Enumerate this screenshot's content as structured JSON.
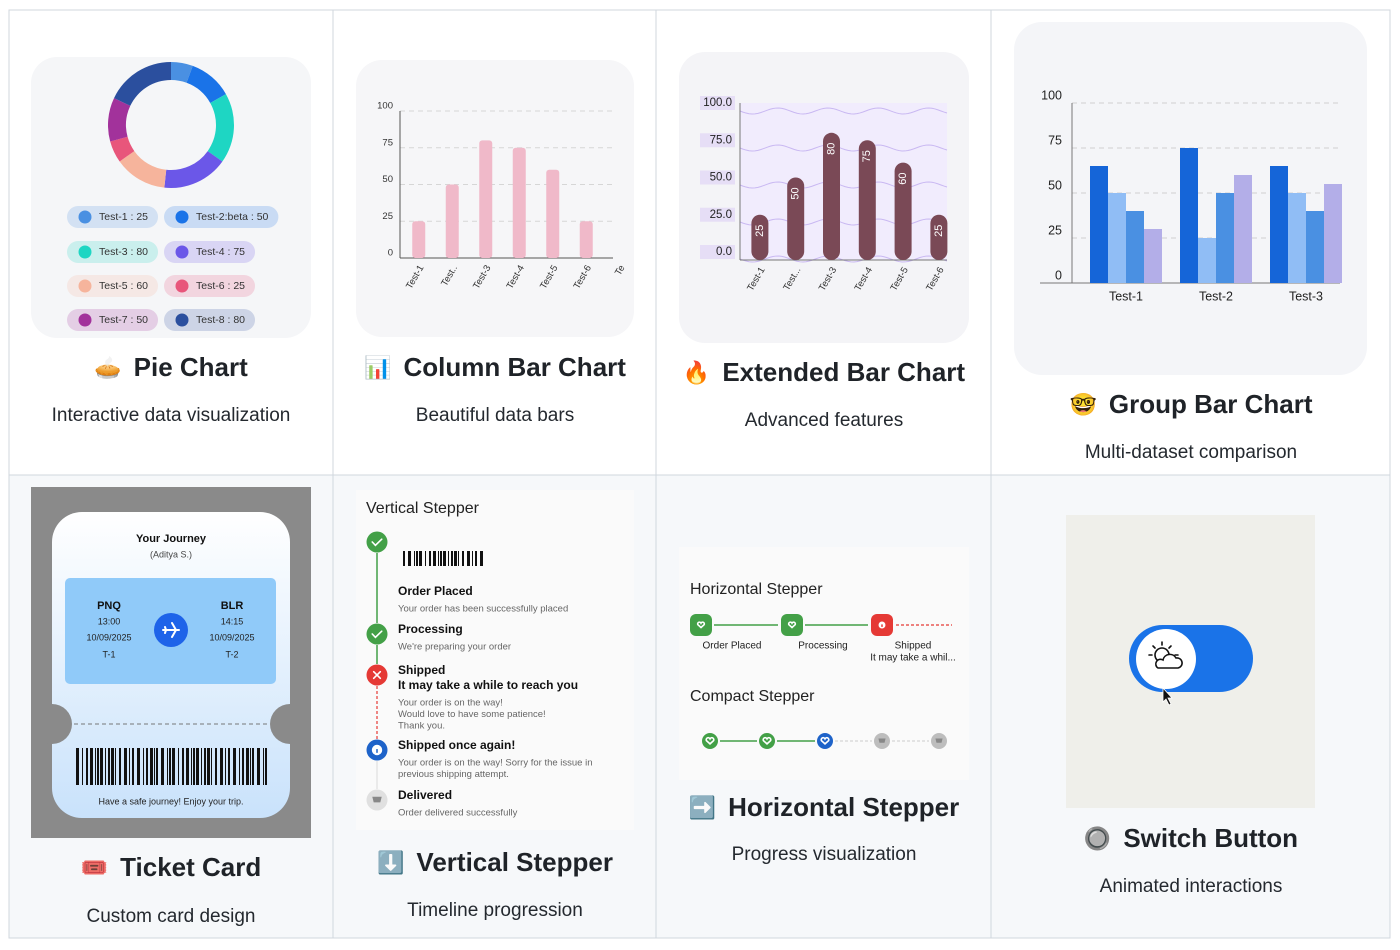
{
  "cards": [
    {
      "emoji": "🥧",
      "title": "Pie Chart",
      "subtitle": "Interactive data visualization",
      "chart": {
        "type": "pie",
        "segments": [
          {
            "label": "Test-1 : 25",
            "value": 25,
            "color": "#4a90e2"
          },
          {
            "label": "Test-2:beta : 50",
            "value": 50,
            "color": "#1a73e8"
          },
          {
            "label": "Test-3 : 80",
            "value": 80,
            "color": "#1ed6c3"
          },
          {
            "label": "Test-4 : 75",
            "value": 75,
            "color": "#6b57e8"
          },
          {
            "label": "Test-5 : 60",
            "value": 60,
            "color": "#f6b49c"
          },
          {
            "label": "Test-6 : 25",
            "value": 25,
            "color": "#e8567b"
          },
          {
            "label": "Test-7 : 50",
            "value": 50,
            "color": "#a2329b"
          },
          {
            "label": "Test-8 : 80",
            "value": 80,
            "color": "#2b4f9e"
          }
        ]
      }
    },
    {
      "emoji": "📊",
      "title": "Column Bar Chart",
      "subtitle": "Beautiful data bars",
      "chart": {
        "type": "bar",
        "categories": [
          "Test-1",
          "Test..",
          "Test-3",
          "Test-4",
          "Test-5",
          "Test-6",
          "Te"
        ],
        "values": [
          25,
          50,
          80,
          75,
          60,
          25,
          null
        ],
        "color": "#f0b9c9",
        "ylim": [
          0,
          100
        ],
        "yticks": [
          0,
          25,
          50,
          75,
          100
        ],
        "grid": true
      }
    },
    {
      "emoji": "🔥",
      "title": "Extended Bar Chart",
      "subtitle": "Advanced features",
      "chart": {
        "type": "extended_bar",
        "categories": [
          "Test-1",
          "Test...",
          "Test-3",
          "Test-4",
          "Test-5",
          "Test-6"
        ],
        "values": [
          25,
          50,
          80,
          75,
          60,
          25
        ],
        "color": "#7a4956",
        "ylim": [
          0,
          100
        ],
        "yticks": [
          {
            "value": 0,
            "label": "0.0"
          },
          {
            "value": 25,
            "label": "25.0"
          },
          {
            "value": 50,
            "label": "50.0"
          },
          {
            "value": 75,
            "label": "75.0"
          },
          {
            "value": 100,
            "label": "100.0"
          }
        ]
      }
    },
    {
      "emoji": "🤓",
      "title": "Group Bar Chart",
      "subtitle": "Multi-dataset comparison",
      "chart": {
        "type": "grouped_bar",
        "categories": [
          "Test-1",
          "Test-2",
          "Test-3"
        ],
        "series": [
          {
            "color": "#1565d8",
            "values": [
              65,
              75,
              65
            ]
          },
          {
            "color": "#90bdf5",
            "values": [
              50,
              25,
              50
            ]
          },
          {
            "color": "#4a90e2",
            "values": [
              40,
              50,
              40
            ]
          },
          {
            "color": "#b3aee8",
            "values": [
              30,
              60,
              55
            ]
          }
        ],
        "ylim": [
          0,
          100
        ],
        "yticks": [
          0,
          25,
          50,
          75,
          100
        ],
        "grid": true
      }
    },
    {
      "emoji": "🎟️",
      "title": "Ticket Card",
      "subtitle": "Custom card design",
      "ticket": {
        "header": "Your Journey",
        "passenger": "(Aditya S.)",
        "from": {
          "code": "PNQ",
          "time": "13:00",
          "date": "10/09/2025",
          "terminal": "T-1"
        },
        "to": {
          "code": "BLR",
          "time": "14:15",
          "date": "10/09/2025",
          "terminal": "T-2"
        },
        "footer": "Have a safe journey! Enjoy your trip."
      }
    },
    {
      "emoji": "⬇️",
      "title": "Vertical Stepper",
      "subtitle": "Timeline progression",
      "stepper": {
        "heading": "Vertical Stepper",
        "steps": [
          {
            "icon": "check",
            "color": "#43a047",
            "title": "Order Placed",
            "lines": [
              "Your order has been successfully placed"
            ]
          },
          {
            "icon": "check",
            "color": "#43a047",
            "title": "Processing",
            "lines": [
              "We're preparing your order"
            ]
          },
          {
            "icon": "cross",
            "color": "#e53935",
            "title": "Shipped",
            "subtitle": "It may take a while to reach you",
            "lines": [
              "Your order is on the way!",
              "Would love to have some patience!",
              "Thank you."
            ]
          },
          {
            "icon": "info",
            "color": "#1e63c9",
            "title": "Shipped once again!",
            "lines": [
              "Your order is on the way! Sorry for the issue in",
              "previous shipping attempt."
            ]
          },
          {
            "icon": "cart",
            "color": "#e0e0e0",
            "title": "Delivered",
            "lines": [
              "Order delivered successfully"
            ]
          }
        ]
      }
    },
    {
      "emoji": "➡️",
      "title": "Horizontal Stepper",
      "subtitle": "Progress visualization",
      "hstepper": {
        "heading": "Horizontal Stepper",
        "steps": [
          {
            "icon": "heart",
            "color": "#43a047",
            "label": "Order Placed"
          },
          {
            "icon": "heart",
            "color": "#43a047",
            "label": "Processing"
          },
          {
            "icon": "info",
            "color": "#e53935",
            "label": "Shipped",
            "note": "It may take a whil..."
          }
        ],
        "compact_heading": "Compact Stepper",
        "compact_colors": [
          "#43a047",
          "#43a047",
          "#1e63c9",
          "#bdbdbd",
          "#bdbdbd"
        ]
      }
    },
    {
      "emoji": "🔘",
      "title": "Switch Button",
      "subtitle": "Animated interactions",
      "switch": {
        "color": "#1a73e8"
      }
    }
  ]
}
